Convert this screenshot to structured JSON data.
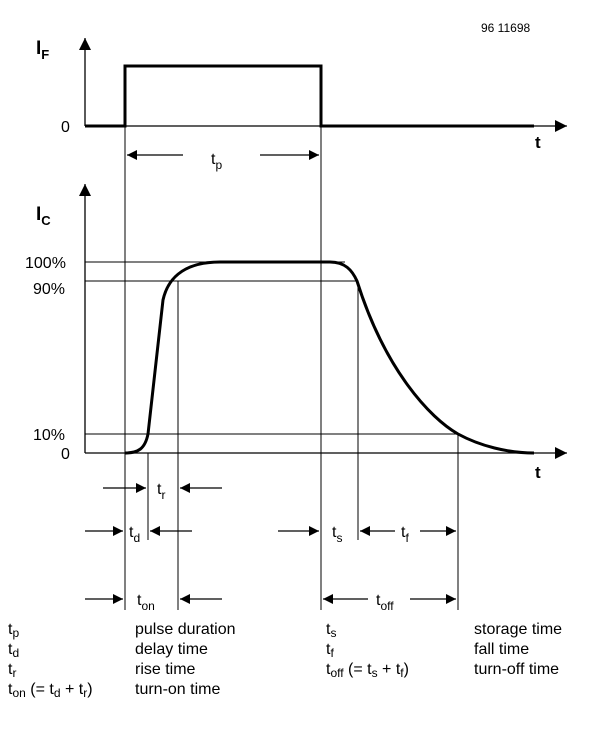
{
  "figure_id": "96 11698",
  "axes": {
    "top_ylabel_main": "I",
    "top_ylabel_sub": "F",
    "bottom_ylabel_main": "I",
    "bottom_ylabel_sub": "C",
    "t_label": "t",
    "zero": "0",
    "pct100": "100%",
    "pct90": "90%",
    "pct10": "10%"
  },
  "markers": {
    "tp": {
      "main": "t",
      "sub": "p"
    },
    "tr": {
      "main": "t",
      "sub": "r"
    },
    "td": {
      "main": "t",
      "sub": "d"
    },
    "ton": {
      "main": "t",
      "sub": "on"
    },
    "ts": {
      "main": "t",
      "sub": "s"
    },
    "tf": {
      "main": "t",
      "sub": "f"
    },
    "toff": {
      "main": "t",
      "sub": "off"
    }
  },
  "legend": [
    {
      "sym": "t",
      "sub": "p",
      "desc": "pulse duration"
    },
    {
      "sym": "t",
      "sub": "d",
      "desc": "delay time"
    },
    {
      "sym": "t",
      "sub": "r",
      "desc": "rise time"
    },
    {
      "sym": "t",
      "sub": "on",
      "extra": [
        " (= t",
        "d",
        " + t",
        "r",
        ")"
      ],
      "desc": "turn-on time"
    },
    {
      "sym": "t",
      "sub": "s",
      "desc": "storage time"
    },
    {
      "sym": "t",
      "sub": "f",
      "desc": "fall time"
    },
    {
      "sym": "t",
      "sub": "off",
      "extra": [
        " (= t",
        "s",
        " + t",
        "f",
        ")"
      ],
      "desc": "turn-off time"
    }
  ]
}
